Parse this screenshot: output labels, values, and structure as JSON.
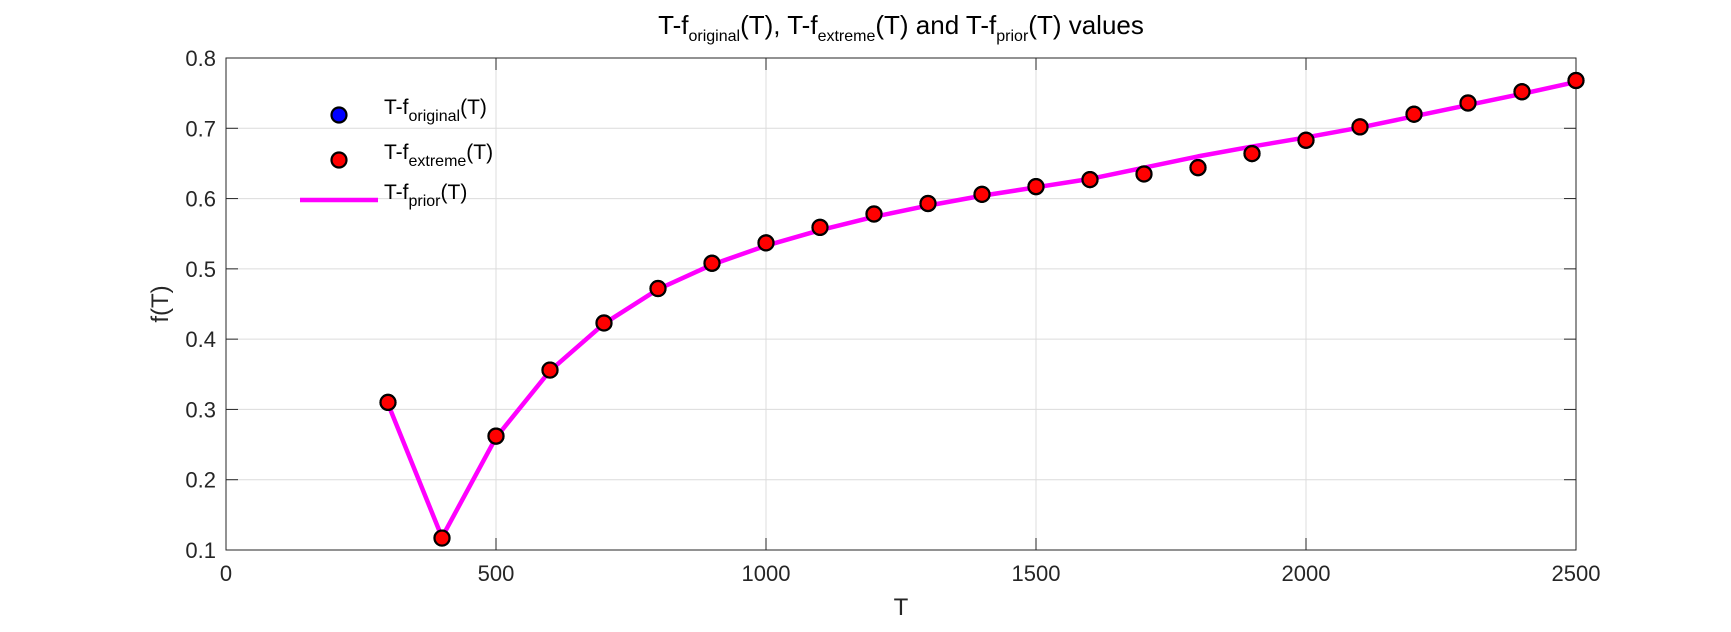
{
  "chart_data": {
    "type": "scatter",
    "title": {
      "parts": [
        {
          "text": "T-f"
        },
        {
          "text": "original",
          "sub": true
        },
        {
          "text": "(T), T-f"
        },
        {
          "text": "extreme",
          "sub": true
        },
        {
          "text": "(T) and T-f"
        },
        {
          "text": "prior",
          "sub": true
        },
        {
          "text": "(T) values"
        }
      ]
    },
    "xlabel": "T",
    "ylabel": "f(T)",
    "xlim": [
      0,
      2500
    ],
    "ylim": [
      0.1,
      0.8
    ],
    "xticks": [
      0,
      500,
      1000,
      1500,
      2000,
      2500
    ],
    "xtick_labels": [
      "0",
      "500",
      "1000",
      "1500",
      "2000",
      "2500"
    ],
    "yticks": [
      0.1,
      0.2,
      0.3,
      0.4,
      0.5,
      0.6,
      0.7,
      0.8
    ],
    "ytick_labels": [
      "0.1",
      "0.2",
      "0.3",
      "0.4",
      "0.5",
      "0.6",
      "0.7",
      "0.8"
    ],
    "grid": true,
    "legend_position": "top-left",
    "x": [
      300,
      400,
      500,
      600,
      700,
      800,
      900,
      1000,
      1100,
      1200,
      1300,
      1400,
      1500,
      1600,
      1700,
      1800,
      1900,
      2000,
      2100,
      2200,
      2300,
      2400,
      2500
    ],
    "series": [
      {
        "name_parts": [
          {
            "text": "T-f"
          },
          {
            "text": "original",
            "sub": true
          },
          {
            "text": "(T)"
          }
        ],
        "kind": "scatter",
        "color": "#0000ff",
        "values": [
          0.31,
          0.117,
          0.262,
          0.356,
          0.423,
          0.472,
          0.508,
          0.537,
          0.559,
          0.578,
          0.593,
          0.606,
          0.617,
          0.627,
          0.635,
          0.644,
          0.664,
          0.683,
          0.702,
          0.72,
          0.736,
          0.752,
          0.768
        ]
      },
      {
        "name_parts": [
          {
            "text": "T-f"
          },
          {
            "text": "extreme",
            "sub": true
          },
          {
            "text": "(T)"
          }
        ],
        "kind": "scatter",
        "color": "#ff0000",
        "values": [
          0.31,
          0.117,
          0.262,
          0.356,
          0.423,
          0.472,
          0.508,
          0.537,
          0.559,
          0.578,
          0.593,
          0.606,
          0.617,
          0.627,
          0.635,
          0.644,
          0.664,
          0.683,
          0.702,
          0.72,
          0.736,
          0.752,
          0.768
        ]
      },
      {
        "name_parts": [
          {
            "text": "T-f"
          },
          {
            "text": "prior",
            "sub": true
          },
          {
            "text": "(T)"
          }
        ],
        "kind": "line",
        "color": "#ff00ff",
        "values": [
          0.308,
          0.118,
          0.26,
          0.355,
          0.422,
          0.471,
          0.506,
          0.533,
          0.555,
          0.574,
          0.59,
          0.604,
          0.616,
          0.628,
          0.644,
          0.66,
          0.674,
          0.687,
          0.701,
          0.717,
          0.733,
          0.749,
          0.766
        ]
      }
    ]
  }
}
